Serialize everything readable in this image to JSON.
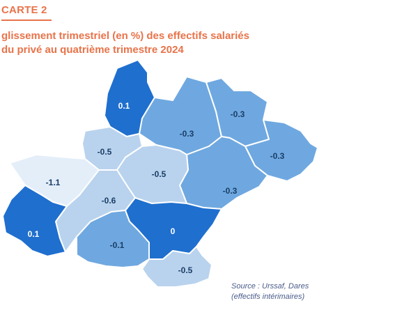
{
  "header": {
    "label": "CARTE 2"
  },
  "title": {
    "line1": "glissement trimestriel (en %) des effectifs salariés",
    "line2": "du privé au quatrième trimestre 2024"
  },
  "regions": [
    {
      "id": "lot",
      "value": "0.1"
    },
    {
      "id": "aveyron",
      "value": "-0.3"
    },
    {
      "id": "lozere",
      "value": "-0.3"
    },
    {
      "id": "gard",
      "value": "-0.3"
    },
    {
      "id": "herault",
      "value": "-0.3"
    },
    {
      "id": "tarn-et-garonne",
      "value": "-0.5"
    },
    {
      "id": "gers",
      "value": "-1.1"
    },
    {
      "id": "tarn",
      "value": "-0.5"
    },
    {
      "id": "haute-garonne",
      "value": "-0.6"
    },
    {
      "id": "hautes-pyrenees",
      "value": "0.1"
    },
    {
      "id": "ariege",
      "value": "-0.1"
    },
    {
      "id": "aude",
      "value": "0"
    },
    {
      "id": "pyrenees-orientales",
      "value": "-0.5"
    }
  ],
  "colors": {
    "dark": "#1f6fce",
    "medium": "#6fa8e0",
    "light": "#b9d3ee",
    "lightest": "#e3eef9",
    "dark_text": "#ffffff",
    "light_text": "#1a3d66"
  },
  "source": {
    "line1": "Source : Urssaf, Dares",
    "line2": "(effectifs intérimaires)"
  }
}
